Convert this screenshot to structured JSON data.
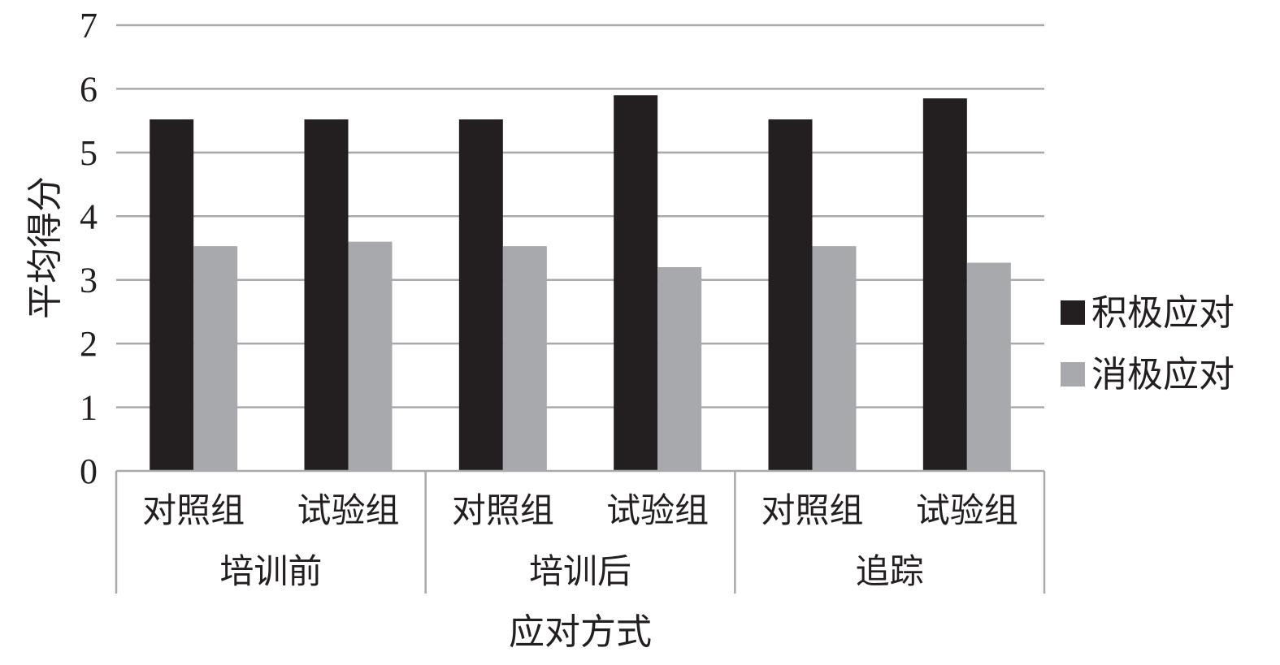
{
  "chart_data": {
    "type": "bar",
    "title": "",
    "ylabel": "平均得分",
    "xlabel": "应对方式",
    "ylim": [
      0,
      7
    ],
    "yticks": [
      0,
      1,
      2,
      3,
      4,
      5,
      6,
      7
    ],
    "grid": true,
    "legend_position": "right",
    "categories": [
      "对照组",
      "试验组",
      "对照组",
      "试验组",
      "对照组",
      "试验组"
    ],
    "groups": [
      {
        "label": "培训前",
        "span": 2
      },
      {
        "label": "培训后",
        "span": 2
      },
      {
        "label": "追踪",
        "span": 2
      }
    ],
    "series": [
      {
        "name": "积极应对",
        "color": "#231f20",
        "values": [
          5.52,
          5.52,
          5.52,
          5.9,
          5.52,
          5.85
        ]
      },
      {
        "name": "消极应对",
        "color": "#a7a9ac",
        "values": [
          3.53,
          3.6,
          3.53,
          3.2,
          3.53,
          3.27
        ]
      }
    ],
    "colors": {
      "grid": "#a7a9ac",
      "axis": "#a7a9ac",
      "text": "#231f20"
    }
  }
}
